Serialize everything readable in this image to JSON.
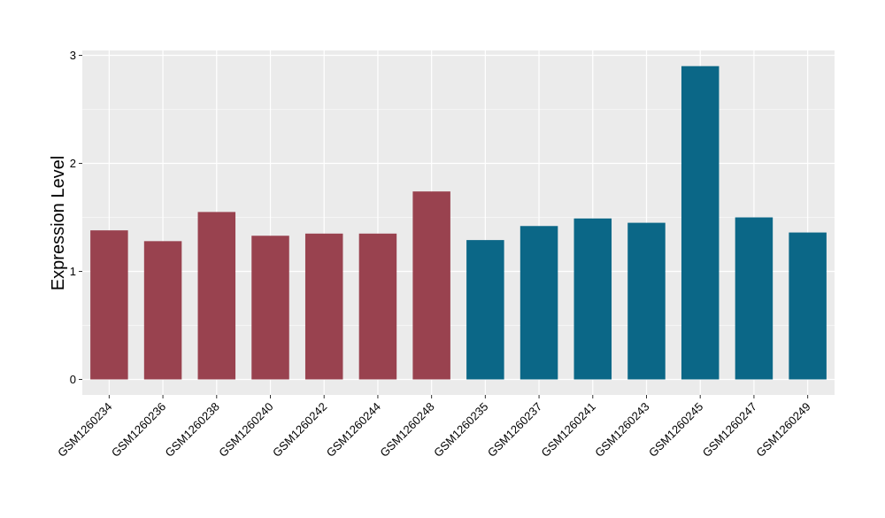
{
  "chart_data": {
    "type": "bar",
    "title": "",
    "xlabel": "",
    "ylabel": "Expression Level",
    "ylim": [
      0,
      3
    ],
    "yticks": [
      0,
      1,
      2,
      3
    ],
    "grid": true,
    "categories": [
      "GSM1260234",
      "GSM1260236",
      "GSM1260238",
      "GSM1260240",
      "GSM1260242",
      "GSM1260244",
      "GSM1260248",
      "GSM1260235",
      "GSM1260237",
      "GSM1260241",
      "GSM1260243",
      "GSM1260245",
      "GSM1260247",
      "GSM1260249"
    ],
    "values": [
      1.38,
      1.28,
      1.55,
      1.33,
      1.35,
      1.35,
      1.74,
      1.29,
      1.42,
      1.49,
      1.45,
      2.9,
      1.5,
      1.36
    ],
    "bar_colors": [
      "#99424f",
      "#99424f",
      "#99424f",
      "#99424f",
      "#99424f",
      "#99424f",
      "#99424f",
      "#0b6787",
      "#0b6787",
      "#0b6787",
      "#0b6787",
      "#0b6787",
      "#0b6787",
      "#0b6787"
    ],
    "panel_background": "#ebebeb",
    "grid_color": "#ffffff"
  }
}
